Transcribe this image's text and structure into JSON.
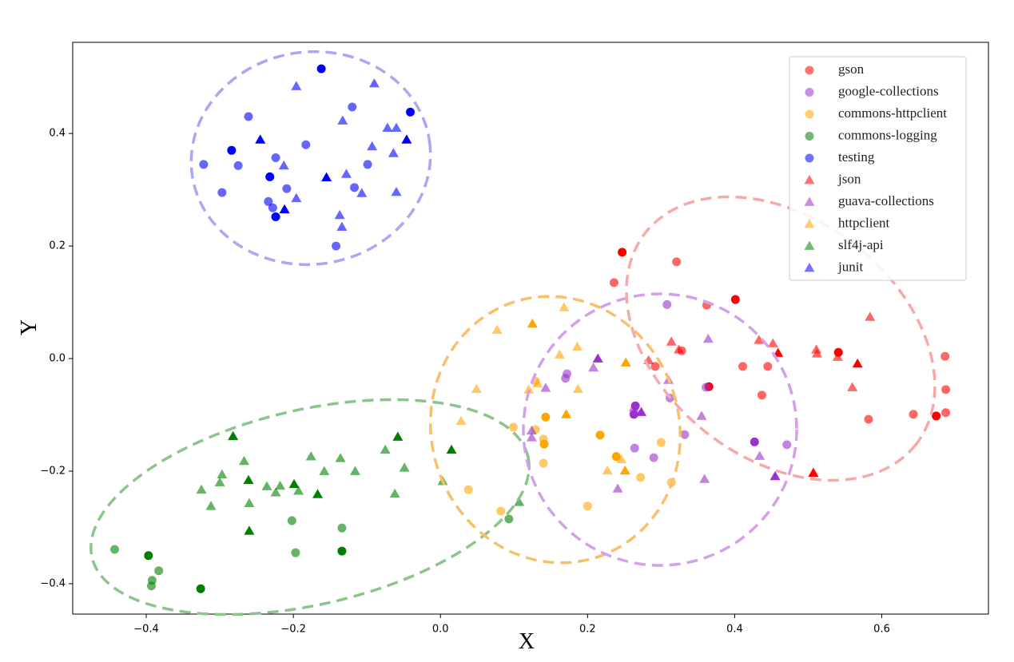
{
  "chart_data": {
    "type": "scatter",
    "x_label": "X",
    "y_label": "Y",
    "xlim": [
      -0.5,
      0.745
    ],
    "ylim": [
      -0.454,
      0.562
    ],
    "xticks": [
      {
        "value": -0.4,
        "label": "−0.4"
      },
      {
        "value": -0.2,
        "label": "−0.2"
      },
      {
        "value": 0,
        "label": "0.0"
      },
      {
        "value": 0.2,
        "label": "0.2"
      },
      {
        "value": 0.4,
        "label": "0.4"
      },
      {
        "value": 0.6,
        "label": "0.6"
      }
    ],
    "yticks": [
      {
        "value": -0.4,
        "label": "−0.4"
      },
      {
        "value": -0.2,
        "label": "−0.2"
      },
      {
        "value": 0,
        "label": "0.0"
      },
      {
        "value": 0.2,
        "label": "0.2"
      },
      {
        "value": 0.4,
        "label": "0.4"
      }
    ],
    "legend": "upper right",
    "series": [
      {
        "name": "gson",
        "color": "#ff0000",
        "marker": "o",
        "x": [
          0.247,
          0.321,
          0.236,
          0.362,
          0.401,
          0.292,
          0.411,
          0.445,
          0.541,
          0.686,
          0.687,
          0.582,
          0.674,
          0.643,
          0.687,
          0.437,
          0.365,
          0.328
        ],
        "y": [
          0.189,
          0.172,
          0.135,
          0.095,
          0.105,
          -0.014,
          -0.014,
          -0.014,
          0.011,
          0.004,
          -0.055,
          -0.108,
          -0.102,
          -0.099,
          -0.096,
          -0.065,
          -0.05,
          0.014
        ]
      },
      {
        "name": "google-collections",
        "color": "#9932cc",
        "marker": "o",
        "x": [
          0.308,
          0.172,
          0.17,
          0.265,
          0.312,
          0.332,
          0.361,
          0.427,
          0.471,
          0.264,
          0.29,
          0.263
        ],
        "y": [
          0.096,
          -0.027,
          -0.035,
          -0.084,
          -0.07,
          -0.135,
          -0.051,
          -0.148,
          -0.153,
          -0.159,
          -0.176,
          -0.099
        ]
      },
      {
        "name": "commons-httpclient",
        "color": "#ffa500",
        "marker": "o",
        "x": [
          0.129,
          0.129,
          0.143,
          0.099,
          0.14,
          0.14,
          0.217,
          0.2,
          0.082,
          0.038,
          0.239,
          0.272,
          0.3,
          0.314,
          0.141
        ],
        "y": [
          -0.04,
          -0.126,
          -0.104,
          -0.122,
          -0.143,
          -0.186,
          -0.136,
          -0.262,
          -0.271,
          -0.233,
          -0.174,
          -0.211,
          -0.149,
          -0.22,
          -0.152
        ]
      },
      {
        "name": "commons-logging",
        "color": "#008000",
        "marker": "o",
        "x": [
          -0.443,
          -0.397,
          -0.392,
          -0.393,
          -0.383,
          -0.326,
          -0.202,
          -0.197,
          -0.134,
          -0.134,
          0.093
        ],
        "y": [
          -0.339,
          -0.35,
          -0.394,
          -0.404,
          -0.377,
          -0.409,
          -0.288,
          -0.345,
          -0.301,
          -0.342,
          -0.285
        ]
      },
      {
        "name": "testing",
        "color": "#0000ff",
        "marker": "o",
        "x": [
          -0.162,
          -0.261,
          -0.12,
          -0.183,
          -0.284,
          -0.322,
          -0.275,
          -0.224,
          -0.232,
          -0.209,
          -0.297,
          -0.234,
          -0.224,
          -0.099,
          -0.142,
          -0.117,
          -0.041,
          -0.228
        ],
        "y": [
          0.515,
          0.43,
          0.447,
          0.38,
          0.37,
          0.345,
          0.343,
          0.357,
          0.323,
          0.302,
          0.295,
          0.279,
          0.252,
          0.345,
          0.2,
          0.304,
          0.438,
          0.268
        ]
      },
      {
        "name": "json",
        "color": "#ff0000",
        "marker": "^",
        "x": [
          0.584,
          0.433,
          0.452,
          0.459,
          0.511,
          0.512,
          0.54,
          0.567,
          0.56,
          0.314,
          0.283,
          0.507,
          0.324
        ],
        "y": [
          0.074,
          0.033,
          0.027,
          0.01,
          0.016,
          0.009,
          0.003,
          -0.009,
          -0.051,
          0.03,
          -0.003,
          -0.203,
          0.016
        ]
      },
      {
        "name": "guava-collections",
        "color": "#9932cc",
        "marker": "^",
        "x": [
          0.364,
          0.208,
          0.214,
          0.31,
          0.143,
          0.263,
          0.273,
          0.124,
          0.355,
          0.434,
          0.455,
          0.359,
          0.241,
          0.124
        ],
        "y": [
          0.035,
          -0.016,
          0,
          -0.038,
          -0.052,
          -0.087,
          -0.095,
          -0.14,
          -0.102,
          -0.173,
          -0.209,
          -0.214,
          -0.231,
          -0.128
        ]
      },
      {
        "name": "httpclient",
        "color": "#ffa500",
        "marker": "^",
        "x": [
          0.077,
          0.125,
          0.168,
          0.186,
          0.162,
          0.252,
          0.12,
          0.049,
          0.187,
          0.171,
          0.028,
          0.227,
          0.246,
          0.251,
          0.132
        ],
        "y": [
          0.051,
          0.062,
          0.091,
          0.021,
          0.007,
          -0.007,
          -0.055,
          -0.054,
          -0.054,
          -0.099,
          -0.111,
          -0.199,
          -0.179,
          -0.199,
          -0.044
        ]
      },
      {
        "name": "slf4j-api",
        "color": "#008000",
        "marker": "^",
        "x": [
          -0.282,
          -0.267,
          -0.297,
          -0.3,
          -0.261,
          -0.325,
          -0.312,
          -0.26,
          -0.26,
          -0.236,
          -0.224,
          -0.218,
          -0.199,
          -0.193,
          -0.176,
          -0.158,
          -0.167,
          -0.136,
          -0.116,
          -0.075,
          -0.058,
          -0.049,
          -0.062,
          0.003,
          0.015,
          0.107
        ],
        "y": [
          -0.138,
          -0.182,
          -0.206,
          -0.22,
          -0.216,
          -0.233,
          -0.262,
          -0.257,
          -0.306,
          -0.227,
          -0.238,
          -0.226,
          -0.223,
          -0.235,
          -0.174,
          -0.2,
          -0.241,
          -0.177,
          -0.2,
          -0.162,
          -0.139,
          -0.194,
          -0.24,
          -0.218,
          -0.162,
          -0.255
        ]
      },
      {
        "name": "junit",
        "color": "#0000ff",
        "marker": "^",
        "x": [
          -0.196,
          -0.09,
          -0.133,
          -0.245,
          -0.093,
          -0.072,
          -0.064,
          -0.155,
          -0.128,
          -0.107,
          -0.196,
          -0.212,
          -0.137,
          -0.134,
          -0.06,
          -0.046,
          -0.213,
          -0.06
        ],
        "y": [
          0.484,
          0.489,
          0.423,
          0.389,
          0.377,
          0.41,
          0.365,
          0.322,
          0.328,
          0.294,
          0.285,
          0.265,
          0.255,
          0.234,
          0.296,
          0.389,
          0.343,
          0.41
        ]
      }
    ]
  }
}
